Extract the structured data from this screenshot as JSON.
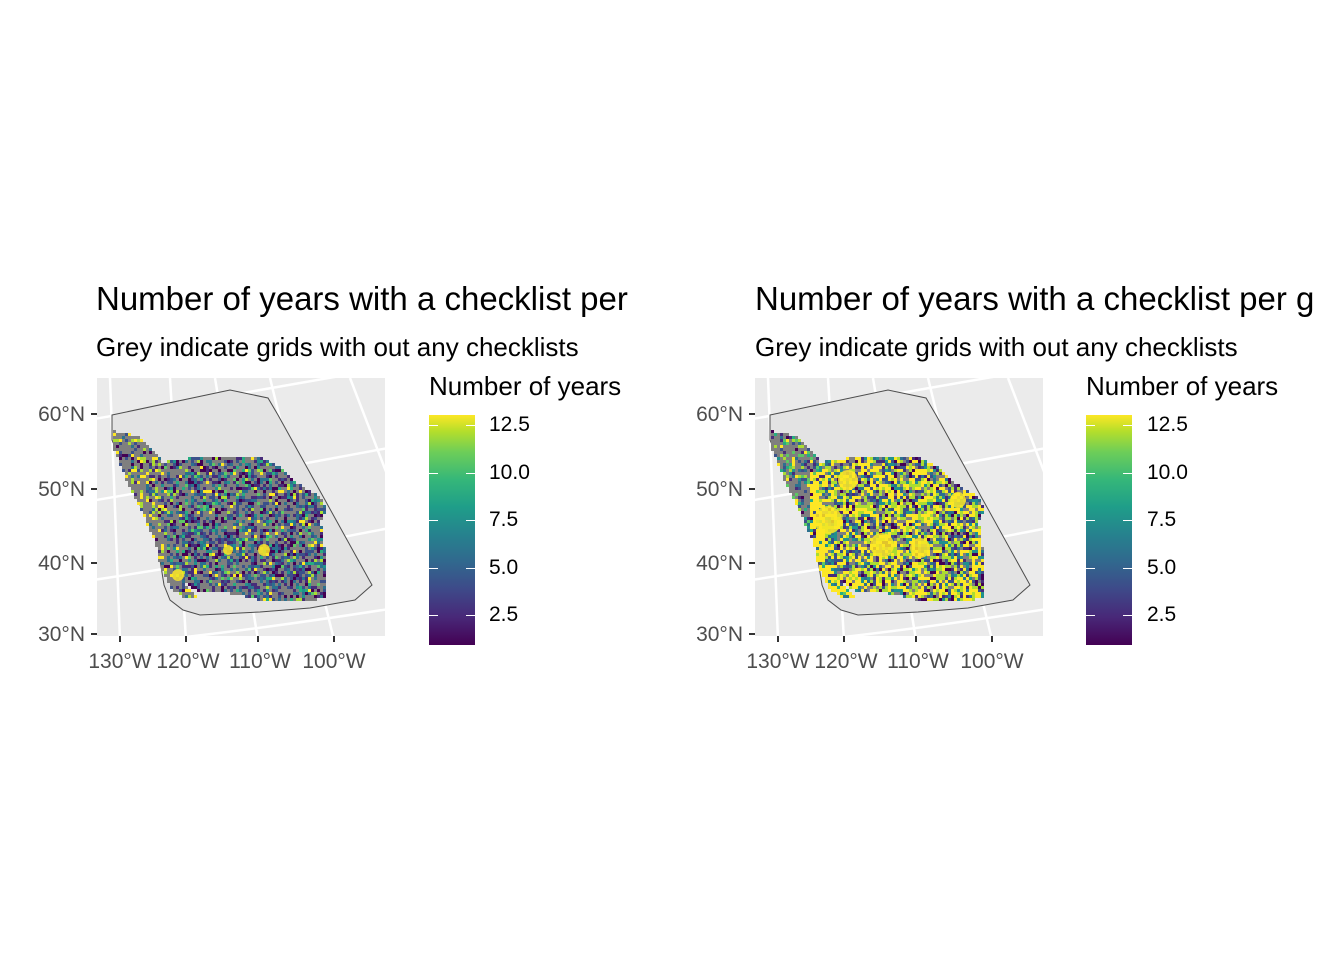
{
  "panels": [
    {
      "title": "Number of years with a checklist per",
      "subtitle": "Grey indicate grids with out any checklists",
      "legend": {
        "title": "Number of years",
        "labels": [
          "12.5",
          "10.0",
          "7.5",
          "5.0",
          "2.5"
        ],
        "colors": [
          "#440154",
          "#3e4989",
          "#26828e",
          "#35b779",
          "#fde725"
        ]
      },
      "lat_labels": [
        "60°N",
        "50°N",
        "40°N",
        "30°N"
      ],
      "lon_labels": [
        "130°W",
        "120°W",
        "110°W",
        "100°W"
      ],
      "palette_bias": "low"
    },
    {
      "title": "Number of years with a checklist per g",
      "subtitle": "Grey indicate grids with out any checklists",
      "legend": {
        "title": "Number of years",
        "labels": [
          "12.5",
          "10.0",
          "7.5",
          "5.0",
          "2.5"
        ],
        "colors": [
          "#440154",
          "#3e4989",
          "#26828e",
          "#35b779",
          "#fde725"
        ]
      },
      "lat_labels": [
        "60°N",
        "50°N",
        "40°N",
        "30°N"
      ],
      "lon_labels": [
        "130°W",
        "120°W",
        "110°W",
        "100°W"
      ],
      "palette_bias": "high"
    }
  ],
  "colors": {
    "panel_background": "#ebebeb",
    "gridline": "#ffffff",
    "no_checklist_grey": "#7f7f7f",
    "region_fill": "#e3e3e3",
    "region_outline": "#4d4d4d"
  }
}
